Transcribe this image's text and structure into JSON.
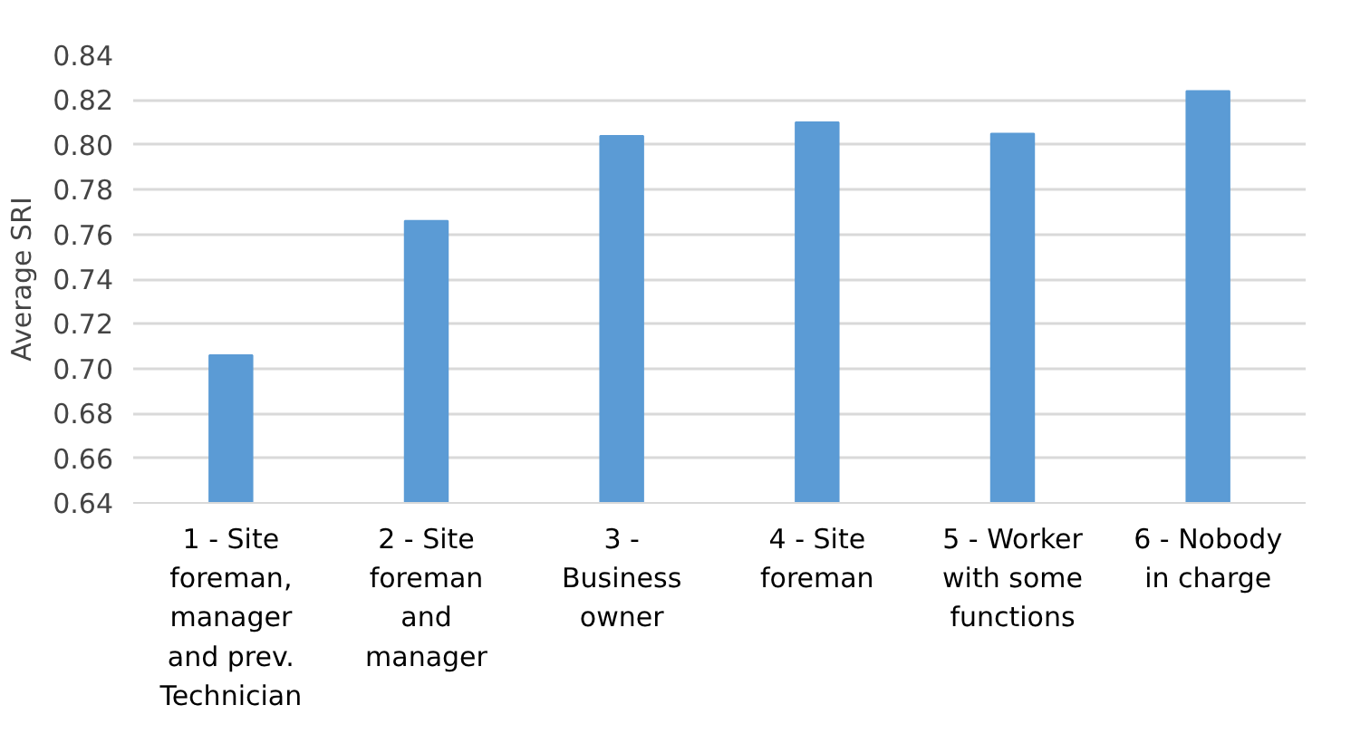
{
  "chart_data": {
    "type": "bar",
    "ylabel": "Average SRI",
    "categories": [
      "1 - Site foreman, manager and prev. Technician",
      "2 - Site foreman and manager",
      "3 - Business owner",
      "4 - Site foreman",
      "5 - Worker with some functions",
      "6 - Nobody in charge"
    ],
    "values": [
      0.706,
      0.766,
      0.804,
      0.81,
      0.805,
      0.824
    ],
    "color": "#5b9bd5",
    "ylim": [
      0.64,
      0.84
    ],
    "yticks": [
      {
        "value": 0.64,
        "label": "0.64"
      },
      {
        "value": 0.66,
        "label": "0.66"
      },
      {
        "value": 0.68,
        "label": "0.68"
      },
      {
        "value": 0.7,
        "label": "0.70"
      },
      {
        "value": 0.72,
        "label": "0.72"
      },
      {
        "value": 0.74,
        "label": "0.74"
      },
      {
        "value": 0.76,
        "label": "0.76"
      },
      {
        "value": 0.78,
        "label": "0.78"
      },
      {
        "value": 0.8,
        "label": "0.80"
      },
      {
        "value": 0.82,
        "label": "0.82"
      },
      {
        "value": 0.84,
        "label": "0.84"
      }
    ],
    "grid": "y"
  }
}
